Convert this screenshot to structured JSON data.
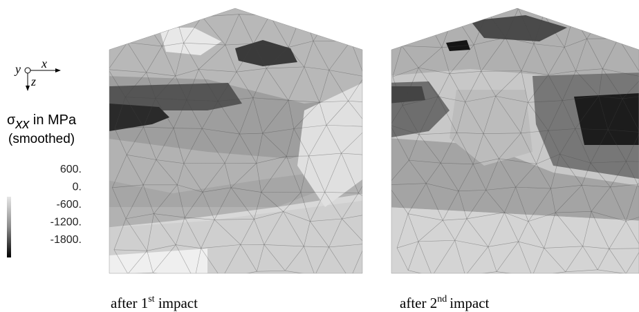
{
  "legend": {
    "axes": {
      "y": "y",
      "x": "x",
      "z": "z"
    },
    "title": {
      "symbol": "σ",
      "subscript": "xx",
      "unit": " in MPa",
      "note": "(smoothed)"
    },
    "levels": [
      "600.",
      "0.",
      "-600.",
      "-1200.",
      "-1800."
    ]
  },
  "panels": [
    {
      "caption": {
        "prefix": "after 1",
        "sup": "st",
        "suffix": " impact"
      }
    },
    {
      "caption": {
        "prefix": "after 2",
        "sup": "nd",
        "suffix": "impact"
      }
    }
  ]
}
